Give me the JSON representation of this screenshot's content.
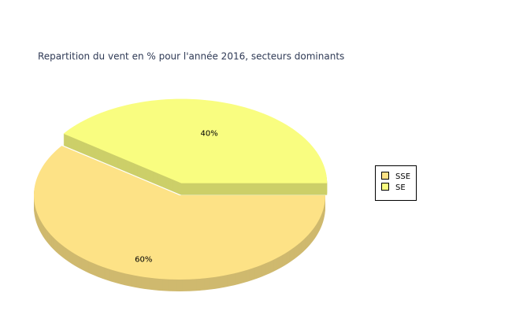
{
  "chart_data": {
    "type": "pie",
    "title": "Repartition du vent en % pour l'année 2016, secteurs dominants",
    "categories": [
      "SSE",
      "SE"
    ],
    "values": [
      60,
      40
    ],
    "value_labels": [
      "60%",
      "40%"
    ],
    "colors": [
      "#fde286",
      "#f9fd80"
    ],
    "legend": "right"
  }
}
